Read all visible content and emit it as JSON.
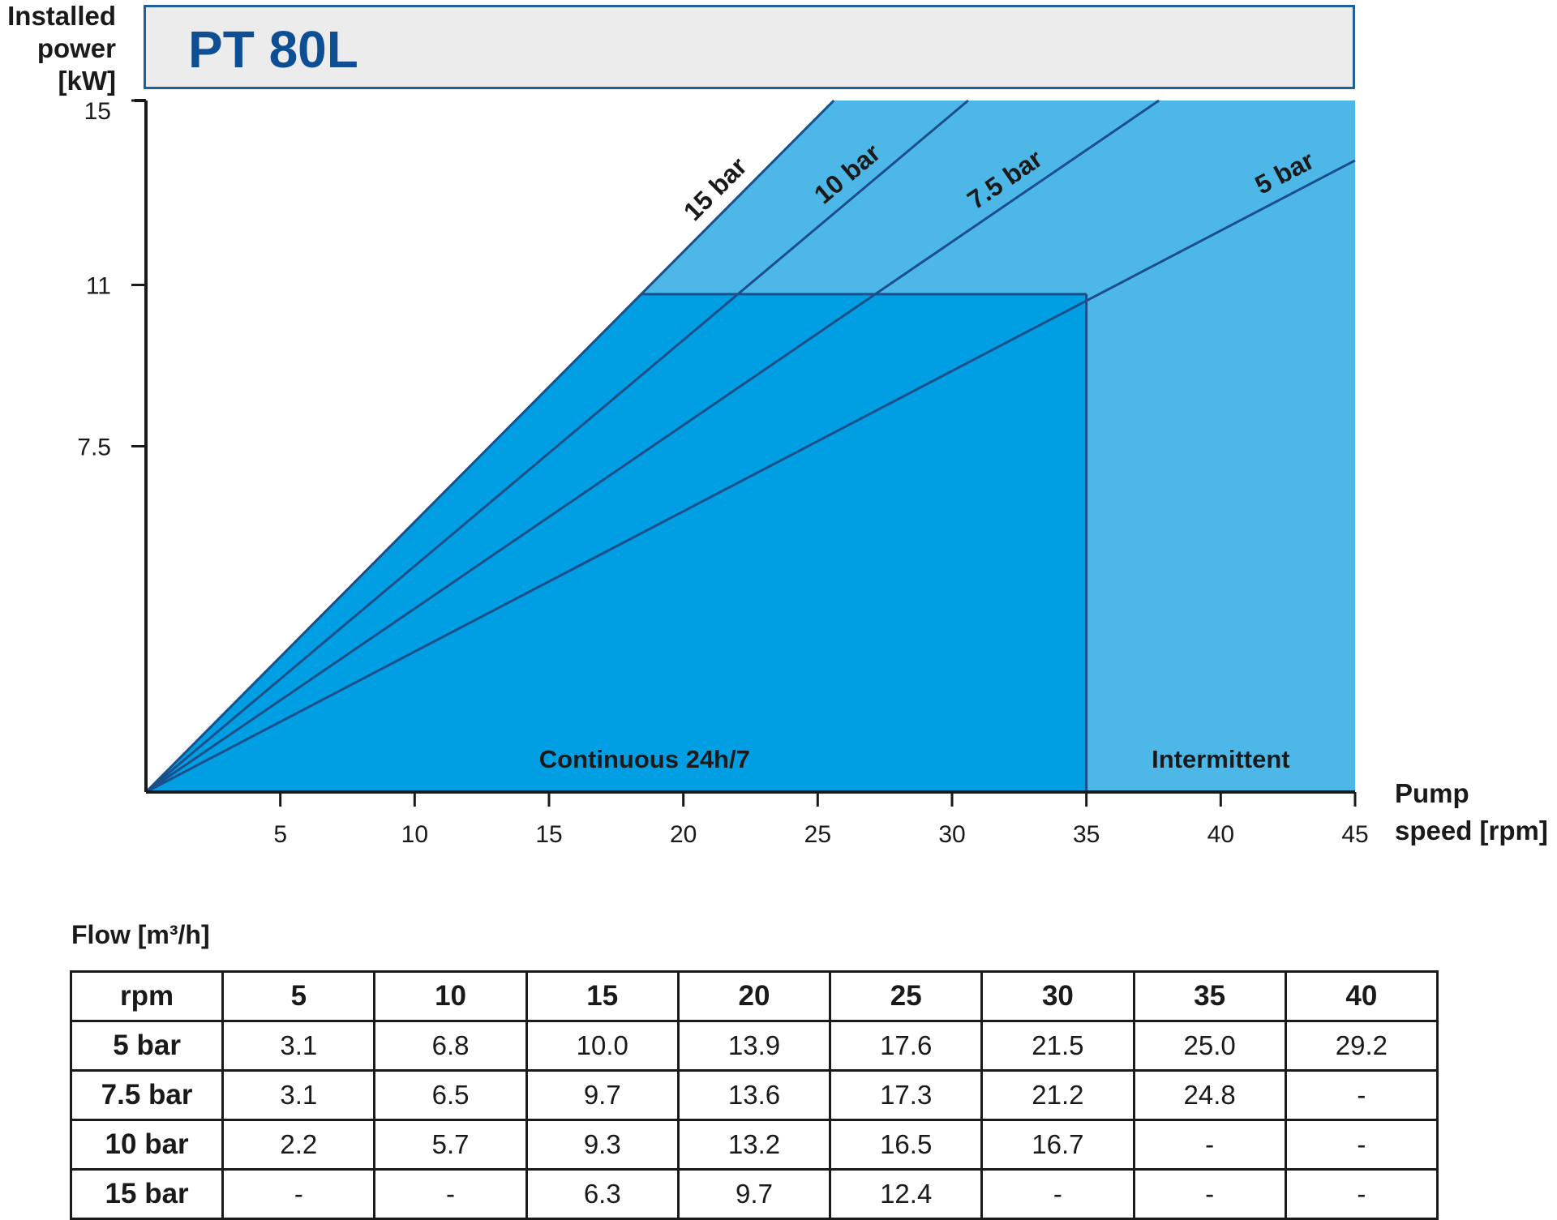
{
  "title": "PT 80L",
  "y_axis": {
    "label_lines": [
      "Installed",
      "power",
      "[kW]"
    ]
  },
  "x_axis": {
    "label_lines": [
      "Pump",
      "speed [rpm]"
    ]
  },
  "chart_data": {
    "type": "line",
    "title": "PT 80L",
    "xlabel": "Pump speed [rpm]",
    "ylabel": "Installed power [kW]",
    "xlim": [
      0,
      45
    ],
    "ylim": [
      0,
      15
    ],
    "x_ticks": [
      "5",
      "10",
      "15",
      "20",
      "25",
      "30",
      "35",
      "40",
      "45"
    ],
    "y_ticks": [
      "7.5",
      "11",
      "15"
    ],
    "y_tick_values": [
      7.5,
      11,
      15
    ],
    "series": [
      {
        "name": "15 bar",
        "x": [
          0,
          25.6
        ],
        "y": [
          0,
          15
        ]
      },
      {
        "name": "10 bar",
        "x": [
          0,
          30.6
        ],
        "y": [
          0,
          15
        ]
      },
      {
        "name": "7.5 bar",
        "x": [
          0,
          37.7
        ],
        "y": [
          0,
          15
        ]
      },
      {
        "name": "5 bar",
        "x": [
          0,
          45
        ],
        "y": [
          0,
          13.7
        ]
      }
    ],
    "regions": [
      {
        "label": "Continuous 24h/7",
        "x": [
          0,
          35
        ],
        "y_max": 10.8
      },
      {
        "label": "Intermittent",
        "x": [
          35,
          45
        ],
        "y_max": 15
      }
    ],
    "region_boundary": {
      "x": 35,
      "y": 10.8
    }
  },
  "flow_table": {
    "title": "Flow [m³/h]",
    "header": [
      "rpm",
      "5",
      "10",
      "15",
      "20",
      "25",
      "30",
      "35",
      "40"
    ],
    "rows": [
      [
        "5 bar",
        "3.1",
        "6.8",
        "10.0",
        "13.9",
        "17.6",
        "21.5",
        "25.0",
        "29.2"
      ],
      [
        "7.5 bar",
        "3.1",
        "6.5",
        "9.7",
        "13.6",
        "17.3",
        "21.2",
        "24.8",
        "-"
      ],
      [
        "10 bar",
        "2.2",
        "5.7",
        "9.3",
        "13.2",
        "16.5",
        "16.7",
        "-",
        "-"
      ],
      [
        "15 bar",
        "-",
        "-",
        "6.3",
        "9.7",
        "12.4",
        "-",
        "-",
        "-"
      ]
    ]
  },
  "colors": {
    "continuous": "#009ee2",
    "intermittent": "#4db8e8",
    "lines": "#1b4f8a",
    "title_text": "#0e4f94",
    "title_border": "#1f5f9e",
    "title_bg": "#ececec"
  }
}
